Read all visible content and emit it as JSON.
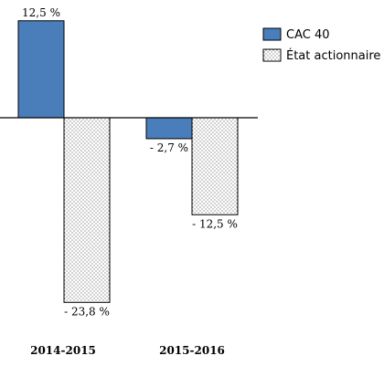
{
  "chart_data": {
    "type": "bar",
    "categories": [
      "2014-2015",
      "2015-2016"
    ],
    "series": [
      {
        "name": "CAC 40",
        "values": [
          12.5,
          -2.7
        ],
        "labels": [
          "12,5 %",
          "- 2,7 %"
        ],
        "color": "#4a7ebb",
        "pattern": "solid"
      },
      {
        "name": "État actionnaire",
        "values": [
          -23.8,
          -12.5
        ],
        "labels": [
          "- 23,8 %",
          "- 12,5 %"
        ],
        "color": "#ffffff",
        "pattern": "dotted"
      }
    ],
    "ylim": [
      -25,
      14
    ],
    "grid": false,
    "legend_position": "top-right",
    "title": "",
    "xlabel": "",
    "ylabel": ""
  }
}
